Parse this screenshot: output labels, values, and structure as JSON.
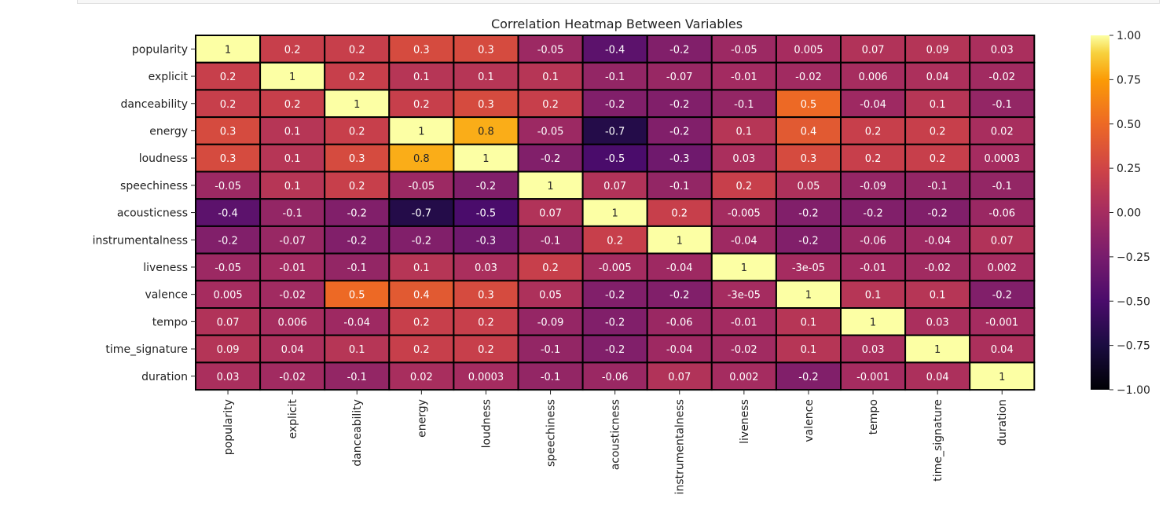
{
  "chart_data": {
    "type": "heatmap",
    "title": "Correlation Heatmap Between Variables",
    "rows": [
      "popularity",
      "explicit",
      "danceability",
      "energy",
      "loudness",
      "speechiness",
      "acousticness",
      "instrumentalness",
      "liveness",
      "valence",
      "tempo",
      "time_signature",
      "duration"
    ],
    "columns": [
      "popularity",
      "explicit",
      "danceability",
      "energy",
      "loudness",
      "speechiness",
      "acousticness",
      "instrumentalness",
      "liveness",
      "valence",
      "tempo",
      "time_signature",
      "duration"
    ],
    "labels": [
      [
        "1",
        "0.2",
        "0.2",
        "0.3",
        "0.3",
        "-0.05",
        "-0.4",
        "-0.2",
        "-0.05",
        "0.005",
        "0.07",
        "0.09",
        "0.03"
      ],
      [
        "0.2",
        "1",
        "0.2",
        "0.1",
        "0.1",
        "0.1",
        "-0.1",
        "-0.07",
        "-0.01",
        "-0.02",
        "0.006",
        "0.04",
        "-0.02"
      ],
      [
        "0.2",
        "0.2",
        "1",
        "0.2",
        "0.3",
        "0.2",
        "-0.2",
        "-0.2",
        "-0.1",
        "0.5",
        "-0.04",
        "0.1",
        "-0.1"
      ],
      [
        "0.3",
        "0.1",
        "0.2",
        "1",
        "0.8",
        "-0.05",
        "-0.7",
        "-0.2",
        "0.1",
        "0.4",
        "0.2",
        "0.2",
        "0.02"
      ],
      [
        "0.3",
        "0.1",
        "0.3",
        "0.8",
        "1",
        "-0.2",
        "-0.5",
        "-0.3",
        "0.03",
        "0.3",
        "0.2",
        "0.2",
        "0.0003"
      ],
      [
        "-0.05",
        "0.1",
        "0.2",
        "-0.05",
        "-0.2",
        "1",
        "0.07",
        "-0.1",
        "0.2",
        "0.05",
        "-0.09",
        "-0.1",
        "-0.1"
      ],
      [
        "-0.4",
        "-0.1",
        "-0.2",
        "-0.7",
        "-0.5",
        "0.07",
        "1",
        "0.2",
        "-0.005",
        "-0.2",
        "-0.2",
        "-0.2",
        "-0.06"
      ],
      [
        "-0.2",
        "-0.07",
        "-0.2",
        "-0.2",
        "-0.3",
        "-0.1",
        "0.2",
        "1",
        "-0.04",
        "-0.2",
        "-0.06",
        "-0.04",
        "0.07"
      ],
      [
        "-0.05",
        "-0.01",
        "-0.1",
        "0.1",
        "0.03",
        "0.2",
        "-0.005",
        "-0.04",
        "1",
        "-3e-05",
        "-0.01",
        "-0.02",
        "0.002"
      ],
      [
        "0.005",
        "-0.02",
        "0.5",
        "0.4",
        "0.3",
        "0.05",
        "-0.2",
        "-0.2",
        "-3e-05",
        "1",
        "0.1",
        "0.1",
        "-0.2"
      ],
      [
        "0.07",
        "0.006",
        "-0.04",
        "0.2",
        "0.2",
        "-0.09",
        "-0.2",
        "-0.06",
        "-0.01",
        "0.1",
        "1",
        "0.03",
        "-0.001"
      ],
      [
        "0.09",
        "0.04",
        "0.1",
        "0.2",
        "0.2",
        "-0.1",
        "-0.2",
        "-0.04",
        "-0.02",
        "0.1",
        "0.03",
        "1",
        "0.04"
      ],
      [
        "0.03",
        "-0.02",
        "-0.1",
        "0.02",
        "0.0003",
        "-0.1",
        "-0.06",
        "0.07",
        "0.002",
        "-0.2",
        "-0.001",
        "0.04",
        "1"
      ]
    ],
    "colormap": "inferno",
    "vmin": -1,
    "vmax": 1,
    "colorbar_ticks": [
      "1.00",
      "0.75",
      "0.50",
      "0.25",
      "0.00",
      "−0.25",
      "−0.50",
      "−0.75",
      "−1.00"
    ],
    "colorbar_tick_values": [
      1,
      0.75,
      0.5,
      0.25,
      0,
      -0.25,
      -0.5,
      -0.75,
      -1
    ]
  }
}
